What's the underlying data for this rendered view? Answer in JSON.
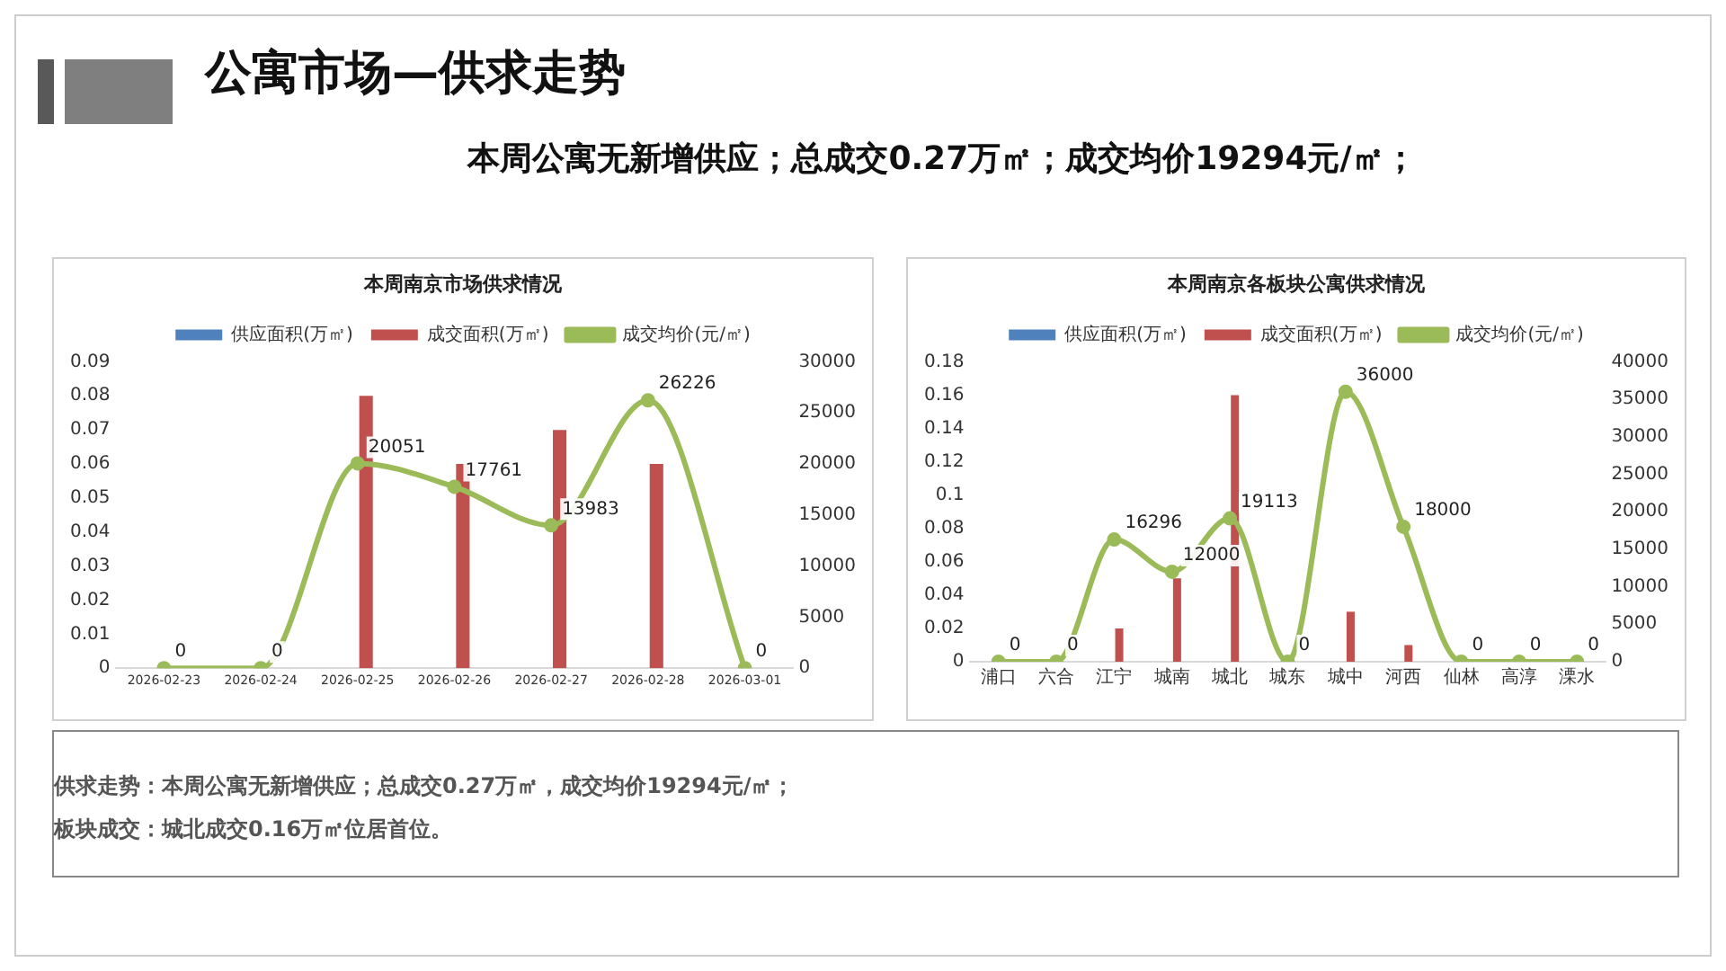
{
  "chart_data": [
    {
      "type": "other",
      "title": "公寓市场—供求走势",
      "subtitle": "本周公寓无新增供应；总成交0.27万㎡；成交均价19294元/㎡；"
    },
    {
      "type": "bar",
      "title": "本周南京市场供求情况",
      "categories": [
        "2026-02-23",
        "2026-02-24",
        "2026-02-25",
        "2026-02-26",
        "2026-02-27",
        "2026-02-28",
        "2026-03-01"
      ],
      "legend": "top",
      "marker": "circle",
      "ylim": [
        0,
        0.09
      ],
      "yticks": [
        0,
        0.01,
        0.02,
        0.03,
        0.04,
        0.05,
        0.06,
        0.07,
        0.08,
        0.09
      ],
      "y2lim": [
        0,
        30000
      ],
      "y2ticks": [
        0,
        5000,
        10000,
        15000,
        20000,
        25000,
        30000
      ],
      "series": [
        {
          "name": "供应面积(万㎡)",
          "type": "bar",
          "color": "#4f81bd",
          "values": [
            0,
            0,
            0,
            0,
            0,
            0,
            0
          ]
        },
        {
          "name": "成交面积(万㎡)",
          "type": "bar",
          "color": "#c0504d",
          "values": [
            0,
            0,
            0.08,
            0.06,
            0.07,
            0.06,
            0
          ]
        },
        {
          "name": "成交均价(元/㎡)",
          "type": "line",
          "axis": "y2",
          "color": "#9bbb59",
          "values": [
            0,
            0,
            20051,
            17761,
            13983,
            26226,
            0
          ],
          "value_labels": [
            "0",
            "0",
            "20051",
            "17761",
            "13983",
            "26226",
            "0"
          ]
        }
      ]
    },
    {
      "type": "bar",
      "title": "本周南京各板块公寓供求情况",
      "categories": [
        "浦口",
        "六合",
        "江宁",
        "城南",
        "城北",
        "城东",
        "城中",
        "河西",
        "仙林",
        "高淳",
        "溧水"
      ],
      "legend": "top",
      "marker": "circle",
      "ylim": [
        0,
        0.18
      ],
      "yticks": [
        0,
        0.02,
        0.04,
        0.06,
        0.08,
        0.1,
        0.12,
        0.14,
        0.16,
        0.18
      ],
      "y2lim": [
        0,
        40000
      ],
      "y2ticks": [
        0,
        5000,
        10000,
        15000,
        20000,
        25000,
        30000,
        35000,
        40000
      ],
      "series": [
        {
          "name": "供应面积(万㎡)",
          "type": "bar",
          "color": "#4f81bd",
          "values": [
            0,
            0,
            0,
            0,
            0,
            0,
            0,
            0,
            0,
            0,
            0
          ]
        },
        {
          "name": "成交面积(万㎡)",
          "type": "bar",
          "color": "#c0504d",
          "values": [
            0,
            0,
            0.02,
            0.05,
            0.16,
            0,
            0.03,
            0.01,
            0,
            0,
            0
          ]
        },
        {
          "name": "成交均价(元/㎡)",
          "type": "line",
          "axis": "y2",
          "color": "#9bbb59",
          "values": [
            0,
            0,
            16296,
            12000,
            19113,
            0,
            36000,
            18000,
            0,
            0,
            0
          ],
          "value_labels": [
            "0",
            "0",
            "16296",
            "12000",
            "19113",
            "0",
            "36000",
            "18000",
            "0",
            "0",
            "0"
          ]
        }
      ]
    },
    {
      "type": "other",
      "annotations": [
        "供求走势：本周公寓无新增供应；总成交0.27万㎡，成交均价19294元/㎡；",
        "板块成交：城北成交0.16万㎡位居首位。"
      ]
    }
  ]
}
